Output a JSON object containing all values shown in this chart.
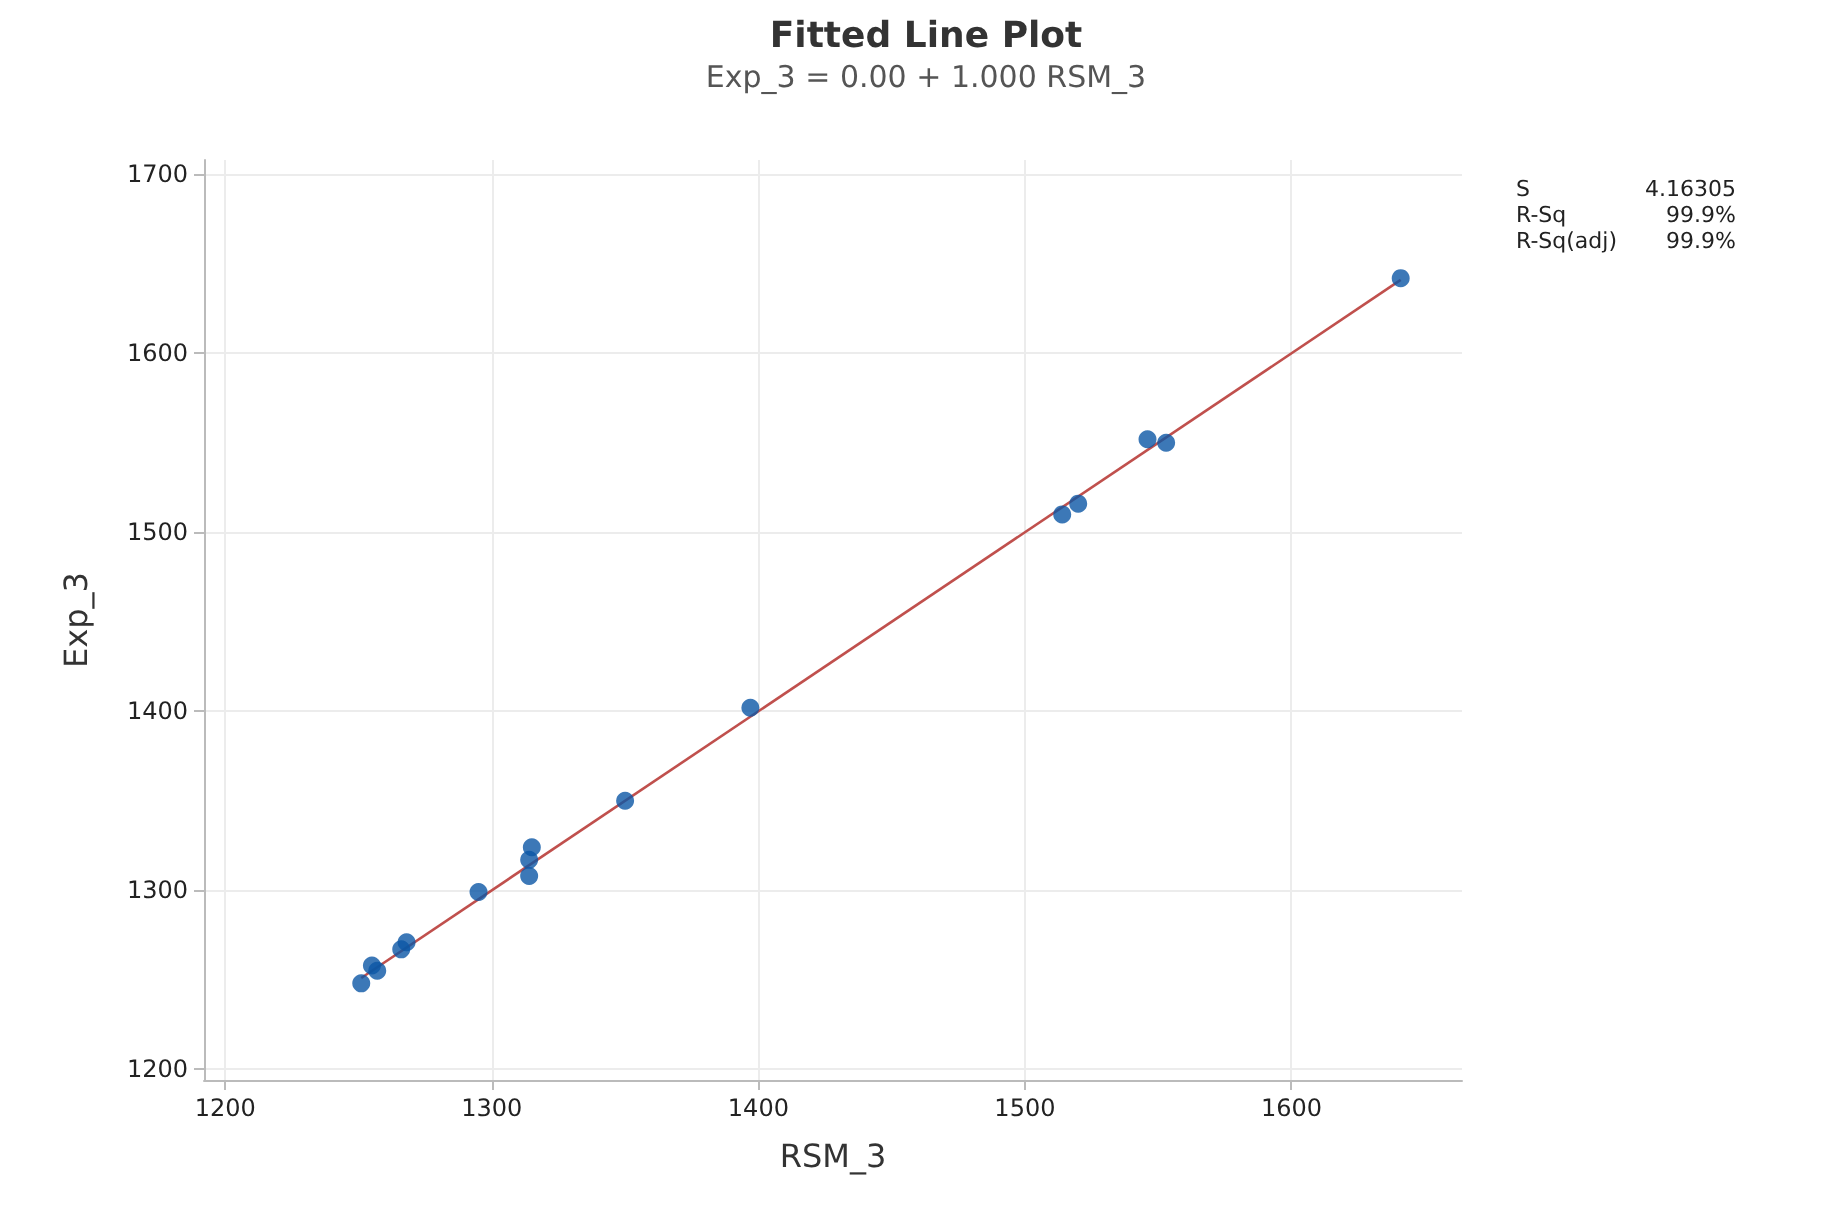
{
  "chart_data": {
    "type": "scatter",
    "title": "Fitted Line Plot",
    "subtitle": "Exp_3 = 0.00 + 1.000 RSM_3",
    "xlabel": "RSM_3",
    "ylabel": "Exp_3",
    "annotations": [
      "S\t4.16305",
      "R-Sq\t99.9%",
      "R-Sq(adj)\t99.9%"
    ],
    "xlim": [
      1192,
      1664
    ],
    "xticks": [
      1200,
      1300,
      1400,
      1500,
      1600
    ],
    "ylim": [
      1194,
      1708
    ],
    "yticks": [
      1200,
      1300,
      1400,
      1500,
      1600,
      1700
    ],
    "grid": true,
    "series": [
      {
        "color": "#0b56a5",
        "marker": "circle",
        "x": [
          1251,
          1255,
          1257,
          1266,
          1268,
          1295,
          1314,
          1314,
          1315,
          1350,
          1397,
          1514,
          1520,
          1546,
          1553,
          1641
        ],
        "values": [
          1248,
          1258,
          1255,
          1267,
          1271,
          1299,
          1308,
          1317,
          1324,
          1350,
          1402,
          1510,
          1516,
          1552,
          1550,
          1642
        ]
      },
      {
        "type": "line",
        "color": "#c0504d",
        "line_style": "solid",
        "marker": "none",
        "x": [
          1251,
          1641
        ],
        "values": [
          1251,
          1641
        ]
      }
    ]
  }
}
